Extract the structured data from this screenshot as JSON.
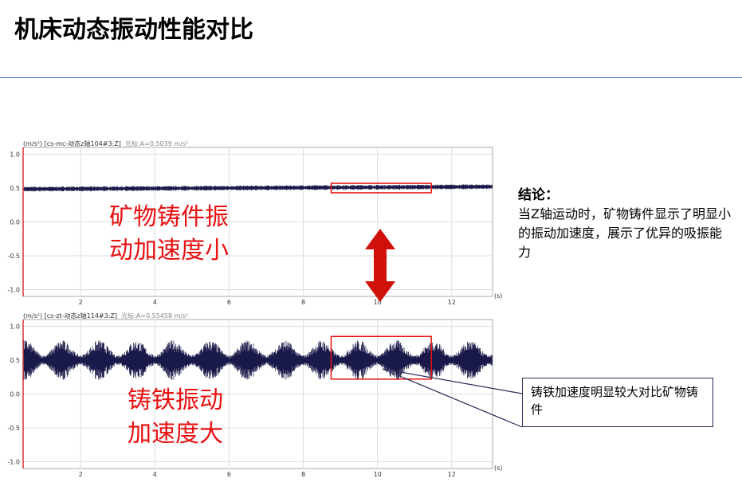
{
  "title": "机床动态振动性能对比",
  "charts": [
    {
      "header": "(m/s²) [cs-mc-动态z轴104#3:Z]",
      "cursor": "光标:A=0.5039 m/s²",
      "label_line1": "矿物铸件振",
      "label_line2": "动加速度小",
      "mean": 0.5,
      "amplitude": 0.03,
      "yticks": [
        "1.0",
        "0.5",
        "0.0",
        "-0.5",
        "-1.0"
      ],
      "xticks": [
        "2",
        "4",
        "6",
        "8",
        "10",
        "12"
      ],
      "xunit": "(s)",
      "xlim": [
        0.45,
        13.1
      ],
      "ylim": [
        -1.1,
        1.1
      ],
      "signal_color": "#1a1a4a",
      "highlight_color": "#e81010"
    },
    {
      "header": "(m/s²) [cs-zt-动态z轴114#3:Z]",
      "cursor": "光标:A=0.55458 m/s²",
      "label_line1": "铸铁振动",
      "label_line2": "加速度大",
      "mean": 0.5,
      "amplitude": 0.25,
      "yticks": [
        "1.0",
        "0.5",
        "0.0",
        "-0.5",
        "-1.0"
      ],
      "xticks": [
        "2",
        "4",
        "6",
        "8",
        "10",
        "12"
      ],
      "xunit": "(s)",
      "xlim": [
        0.45,
        13.1
      ],
      "ylim": [
        -1.1,
        1.1
      ],
      "signal_color": "#1a1a4a",
      "highlight_color": "#e81010"
    }
  ],
  "conclusion": {
    "heading": "结论：",
    "text": "当Z轴运动时，矿物铸件显示了明显小的振动加速度，展示了优异的吸振能力"
  },
  "callout": "铸铁加速度明显较大对比矿物铸件",
  "arrow_color": "#d0100a"
}
